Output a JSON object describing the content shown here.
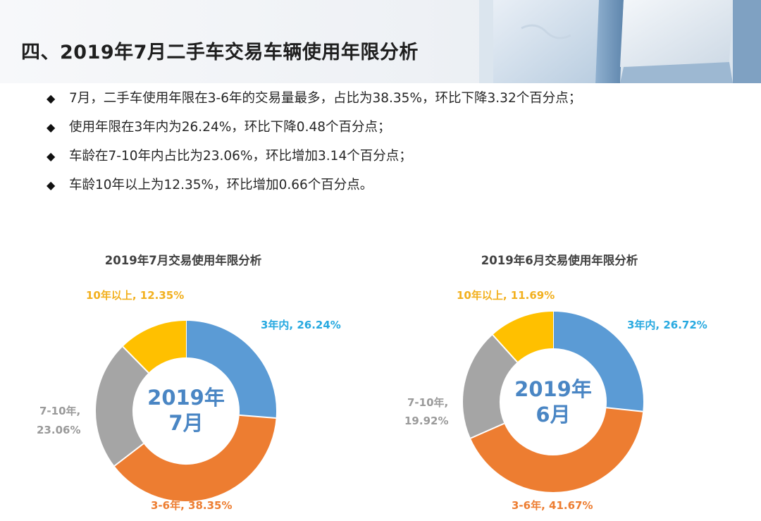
{
  "page": {
    "title": "四、2019年7月二手车交易车辆使用年限分析",
    "bullets": [
      "7月，二手车使用年限在3-6年的交易量最多，占比为38.35%，环比下降3.32个百分点；",
      "使用年限在3年内为26.24%，环比下降0.48个百分点；",
      "车龄在7-10年内占比为23.06%，环比增加3.14个百分点；",
      "车龄10年以上为12.35%，环比增加0.66个百分点。"
    ]
  },
  "colors": {
    "within3": "#5b9bd5",
    "y3to6": "#ed7d31",
    "y7to10": "#a5a5a5",
    "over10": "#ffc000",
    "center_text": "#4a86c4"
  },
  "chart_data": [
    {
      "type": "pie",
      "title": "2019年7月交易使用年限分析",
      "center_label": [
        "2019年",
        "7月"
      ],
      "categories": [
        "3年内",
        "3-6年",
        "7-10年",
        "10年以上"
      ],
      "values": [
        26.24,
        38.35,
        23.06,
        12.35
      ],
      "unit": "%",
      "labels": [
        "3年内, 26.24%",
        "3-6年, 38.35%",
        "7-10年,",
        "23.06%",
        "10年以上, 12.35%"
      ]
    },
    {
      "type": "pie",
      "title": "2019年6月交易使用年限分析",
      "center_label": [
        "2019年",
        "6月"
      ],
      "categories": [
        "3年内",
        "3-6年",
        "7-10年",
        "10年以上"
      ],
      "values": [
        26.72,
        41.67,
        19.92,
        11.69
      ],
      "unit": "%",
      "labels": [
        "3年内, 26.72%",
        "3-6年, 41.67%",
        "7-10年,",
        "19.92%",
        "10年以上, 11.69%"
      ]
    }
  ]
}
